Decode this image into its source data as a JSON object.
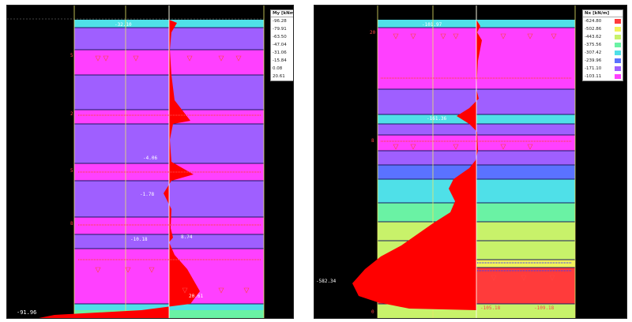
{
  "panels": [
    {
      "legend": {
        "title": "My [kNm/m]",
        "values": [
          "-96.28",
          "-79.91",
          "-63.50",
          "-47.04",
          "-31.06",
          "-15.84",
          "0.08",
          "20.61"
        ],
        "colors": [
          "#ff3b3b",
          "#f2f25a",
          "#c8f26a",
          "#6af2a4",
          "#4fe0e8",
          "#5a72ff",
          "#9f5fff",
          "#ff40ff"
        ]
      },
      "labels": {
        "top": "-32.10",
        "mid_a": "-4.06",
        "mid_b": "-1.78",
        "mid_c": "8.74",
        "mid_d": "-10.18",
        "bottom_right": "20.61",
        "bottom_left": "-91.96",
        "left_1": "5",
        "left_2": "2",
        "left_3": "5",
        "left_4": "8"
      }
    },
    {
      "legend": {
        "title": "Nx [kN/m]",
        "values": [
          "-624.80",
          "-502.86",
          "-443.62",
          "-375.56",
          "-307.42",
          "-239.96",
          "-171.10",
          "-103.11"
        ],
        "colors": [
          "#ff3b3b",
          "#f2f25a",
          "#c8f26a",
          "#6af2a4",
          "#4fe0e8",
          "#5a72ff",
          "#9f5fff",
          "#ff40ff"
        ]
      },
      "labels": {
        "top": "-101.97",
        "mid_a": "-161.36",
        "bottom_left": "-582.34",
        "bottom_right_a": "-105.18",
        "bottom_right_b": "-109.18",
        "left_1": "20",
        "left_2": "8",
        "left_3": "0"
      }
    }
  ]
}
